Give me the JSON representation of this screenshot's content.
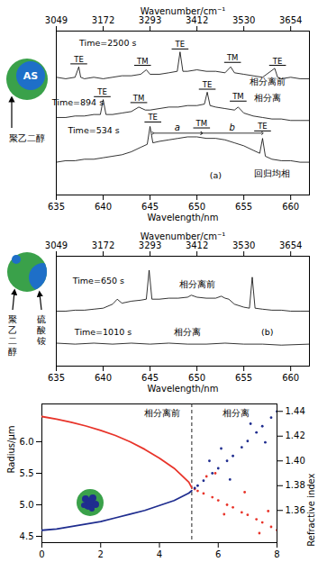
{
  "chart_data": [
    {
      "type": "line",
      "xlabel": "Wavelength/nm",
      "xlim": [
        635,
        662
      ],
      "xticks": [
        635,
        640,
        645,
        650,
        655,
        660
      ],
      "top_axis": {
        "label": "Wavenumber/cm⁻¹",
        "ticks": [
          {
            "value": 635,
            "label": "3049"
          },
          {
            "value": 640,
            "label": "3172"
          },
          {
            "value": 645,
            "label": "3293"
          },
          {
            "value": 650,
            "label": "3412"
          },
          {
            "value": 655,
            "label": "3530"
          },
          {
            "value": 660,
            "label": "3654"
          }
        ]
      },
      "ylim": [
        0,
        11
      ],
      "tick_labels": "x",
      "series": [
        {
          "color": "#000000",
          "x": [
            635,
            636,
            637,
            637.4,
            637.6,
            638,
            639,
            640,
            641,
            642,
            643,
            644,
            644.6,
            645,
            646,
            647,
            647.9,
            648.2,
            648.5,
            649,
            650,
            651,
            652,
            653,
            653.6,
            654,
            655,
            656,
            657,
            658.3,
            658.6,
            659,
            660,
            661,
            662
          ],
          "values": [
            7.9,
            7.8,
            7.9,
            8.6,
            7.9,
            7.8,
            7.9,
            7.8,
            7.9,
            8.0,
            8.0,
            8.1,
            8.4,
            8.1,
            8.1,
            8.2,
            8.3,
            9.6,
            8.3,
            8.3,
            8.4,
            8.3,
            8.3,
            8.2,
            8.6,
            8.2,
            8.1,
            8.0,
            7.9,
            8.5,
            7.9,
            7.8,
            7.9,
            7.8,
            7.8
          ]
        },
        {
          "color": "#000000",
          "x": [
            635,
            636,
            637,
            638,
            639,
            639.7,
            640,
            640.3,
            641,
            642,
            643,
            643.8,
            644.5,
            645,
            646,
            647,
            648,
            649,
            650,
            650.8,
            651.1,
            651.4,
            652,
            653,
            654,
            654.4,
            655,
            656,
            657,
            658,
            659,
            660,
            661,
            662
          ],
          "values": [
            5.2,
            5.2,
            5.3,
            5.3,
            5.4,
            5.4,
            6.4,
            5.4,
            5.4,
            5.5,
            5.6,
            5.9,
            5.7,
            5.7,
            5.8,
            5.9,
            5.9,
            6.0,
            6.0,
            6.1,
            6.9,
            6.0,
            5.9,
            5.8,
            5.7,
            5.9,
            5.5,
            5.3,
            5.2,
            5.1,
            5.1,
            5.0,
            5.0,
            5.0
          ]
        },
        {
          "color": "#000000",
          "x": [
            635,
            636,
            637,
            638,
            639,
            640,
            641,
            642,
            643,
            644,
            644.7,
            645,
            645.3,
            646,
            647,
            648,
            649,
            650,
            651,
            652,
            653,
            654,
            655,
            656,
            656.7,
            657,
            657.3,
            658,
            659,
            660,
            661,
            662
          ],
          "values": [
            2.2,
            2.3,
            2.3,
            2.4,
            2.4,
            2.5,
            2.6,
            2.7,
            2.9,
            3.2,
            3.4,
            4.6,
            3.5,
            3.6,
            3.7,
            3.8,
            3.9,
            3.9,
            3.8,
            3.8,
            3.7,
            3.5,
            3.3,
            3.0,
            2.8,
            3.8,
            2.6,
            2.4,
            2.3,
            2.3,
            2.2,
            2.2
          ]
        }
      ],
      "annotations": [
        {
          "text": "Time=2500 s",
          "x": 640.5,
          "y": 10.2
        },
        {
          "text": "相分离前",
          "x": 657.5,
          "y": 7.6
        },
        {
          "text": "Time=894 s",
          "x": 637.3,
          "y": 6.2
        },
        {
          "text": "相分离",
          "x": 657.5,
          "y": 6.5
        },
        {
          "text": "Time=534 s",
          "x": 639,
          "y": 4.3
        },
        {
          "text": "回归均相",
          "x": 658,
          "y": 1.4
        },
        {
          "text": "(a)",
          "x": 652,
          "y": 1.3
        }
      ],
      "mode_labels": [
        {
          "text": "TE",
          "x": 637.4,
          "y": 8.8
        },
        {
          "text": "TM",
          "x": 644.2,
          "y": 8.7
        },
        {
          "text": "TE",
          "x": 648.2,
          "y": 9.8
        },
        {
          "text": "TM",
          "x": 653.8,
          "y": 8.9
        },
        {
          "text": "TE",
          "x": 658.6,
          "y": 8.7
        },
        {
          "text": "TE",
          "x": 639.9,
          "y": 6.6
        },
        {
          "text": "TM",
          "x": 643.8,
          "y": 6.2
        },
        {
          "text": "TE",
          "x": 651.1,
          "y": 7.1
        },
        {
          "text": "TM",
          "x": 654.4,
          "y": 6.3
        },
        {
          "text": "TE",
          "x": 645.3,
          "y": 4.9
        },
        {
          "text": "TM",
          "x": 650.5,
          "y": 4.5
        },
        {
          "text": "TE",
          "x": 657,
          "y": 4.3
        }
      ],
      "spans": [
        {
          "label": "a",
          "x1": 645.3,
          "x2": 650.5,
          "y": 4.15
        },
        {
          "label": "b",
          "x1": 650.5,
          "x2": 657,
          "y": 4.15
        }
      ],
      "icon_labels": [
        "AS",
        "聚乙二醇"
      ]
    },
    {
      "type": "line",
      "xlabel": "Wavelength/nm",
      "xlim": [
        635,
        662
      ],
      "xticks": [
        635,
        640,
        645,
        650,
        655,
        660
      ],
      "top_axis": {
        "label": "Wavenumber/cm⁻¹",
        "ticks": [
          {
            "value": 635,
            "label": "3049"
          },
          {
            "value": 640,
            "label": "3172"
          },
          {
            "value": 645,
            "label": "3293"
          },
          {
            "value": 650,
            "label": "3412"
          },
          {
            "value": 655,
            "label": "3530"
          },
          {
            "value": 660,
            "label": "3654"
          }
        ]
      },
      "ylim": [
        0,
        11
      ],
      "tick_labels": "x",
      "series": [
        {
          "color": "#000000",
          "x": [
            635,
            636,
            637,
            638,
            639,
            640,
            641,
            641.5,
            642,
            643,
            644,
            644.6,
            644.9,
            645.2,
            646,
            647,
            648,
            649,
            649.4,
            650,
            651,
            652,
            652.6,
            653,
            653.4,
            654,
            655,
            655.6,
            655.9,
            656.2,
            657,
            658,
            659,
            660,
            661,
            662
          ],
          "values": [
            5.5,
            5.5,
            5.6,
            5.6,
            5.7,
            5.8,
            6.2,
            6.7,
            6.3,
            6.5,
            6.6,
            6.7,
            9.6,
            6.7,
            6.7,
            6.8,
            6.8,
            6.9,
            7.1,
            6.9,
            6.8,
            6.8,
            7.0,
            6.8,
            6.7,
            6.2,
            5.9,
            5.8,
            8.9,
            5.8,
            5.7,
            5.6,
            5.6,
            5.5,
            5.5,
            5.5
          ]
        },
        {
          "color": "#000000",
          "x": [
            635,
            637,
            639,
            641,
            643,
            645,
            647,
            649,
            651,
            653,
            655,
            657,
            659,
            662
          ],
          "values": [
            2.3,
            2.2,
            2.3,
            2.2,
            2.3,
            2.2,
            2.3,
            2.2,
            2.2,
            2.3,
            2.2,
            2.2,
            2.1,
            2.2
          ]
        }
      ],
      "annotations": [
        {
          "text": "Time=650 s",
          "x": 639.5,
          "y": 8.5
        },
        {
          "text": "相分离前",
          "x": 650,
          "y": 8.2
        },
        {
          "text": "Time=1010 s",
          "x": 640,
          "y": 3.4
        },
        {
          "text": "相分离",
          "x": 649,
          "y": 3.4
        },
        {
          "text": "(b)",
          "x": 657.5,
          "y": 3.4
        }
      ],
      "icon_labels": [
        "聚乙二醇",
        "硫酸铵"
      ]
    },
    {
      "type": "line",
      "xlim": [
        0,
        8
      ],
      "xticks": [
        0,
        2,
        4,
        6,
        8
      ],
      "ylabel": "Radius/μm",
      "ylim": [
        4.4,
        6.6
      ],
      "yticks": [
        4.5,
        {
          "value": 5,
          "label": "5.0"
        },
        5.5,
        {
          "value": 6,
          "label": "6.0"
        }
      ],
      "y2label": "Refractive index",
      "y2lim": [
        1.334,
        1.446
      ],
      "y2ticks": [
        1.36,
        1.38,
        {
          "value": 1.4,
          "label": "1.40"
        },
        1.42,
        1.44
      ],
      "phase_line": 5.1,
      "series": [
        {
          "type": "line",
          "color": "#e8342a",
          "x": [
            0,
            0.5,
            1,
            1.5,
            2,
            2.5,
            3,
            3.5,
            4,
            4.5,
            5,
            5.1
          ],
          "values": [
            6.4,
            6.36,
            6.31,
            6.25,
            6.18,
            6.1,
            6.0,
            5.88,
            5.74,
            5.58,
            5.36,
            5.27
          ]
        },
        {
          "type": "scatter",
          "color": "#e8342a",
          "x": [
            5.2,
            5.3,
            5.5,
            5.6,
            5.8,
            5.9,
            6,
            6.2,
            6.3,
            6.5,
            6.8,
            6.9,
            7,
            7.3,
            7.4,
            7.5,
            7.7,
            7.8,
            8
          ],
          "values": [
            5.25,
            5.22,
            5.18,
            5.45,
            5.12,
            5.5,
            5.07,
            4.85,
            5.0,
            4.96,
            4.88,
            5.2,
            4.84,
            4.77,
            4.55,
            4.72,
            4.9,
            4.65,
            4.6
          ]
        },
        {
          "type": "line",
          "color": "#1f2d8f",
          "axis": "y2",
          "x": [
            0,
            0.5,
            1,
            1.5,
            2,
            2.5,
            3,
            3.5,
            4,
            4.5,
            5,
            5.1
          ],
          "values": [
            1.344,
            1.345,
            1.347,
            1.349,
            1.351,
            1.354,
            1.357,
            1.36,
            1.364,
            1.368,
            1.374,
            1.376
          ]
        },
        {
          "type": "scatter",
          "color": "#1f2d8f",
          "axis": "y2",
          "x": [
            5.2,
            5.3,
            5.5,
            5.7,
            5.8,
            6,
            6.1,
            6.3,
            6.4,
            6.5,
            6.8,
            7,
            7.1,
            7.3,
            7.5,
            7.6,
            7.8,
            8
          ],
          "values": [
            1.378,
            1.38,
            1.384,
            1.4,
            1.39,
            1.394,
            1.41,
            1.4,
            1.385,
            1.404,
            1.411,
            1.416,
            1.43,
            1.423,
            1.428,
            1.415,
            1.435,
            1.44
          ]
        }
      ],
      "annotations": [
        {
          "text": "相分离前",
          "x": 4.1,
          "y": 6.45
        },
        {
          "text": "相分离",
          "x": 6.6,
          "y": 6.45
        }
      ]
    }
  ]
}
